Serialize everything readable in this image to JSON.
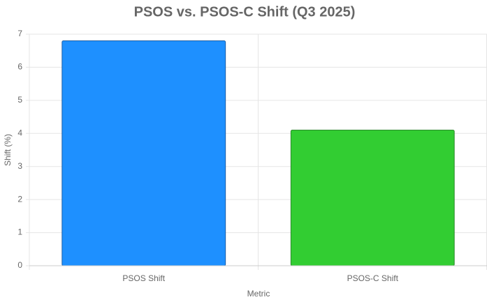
{
  "chart_data": {
    "type": "bar",
    "title": "PSOS vs. PSOS-C Shift (Q3 2025)",
    "x_label": "Metric",
    "y_label": "Shift (%)",
    "categories": [
      "PSOS Shift",
      "PSOS-C Shift"
    ],
    "values": [
      6.8,
      4.1
    ],
    "colors": [
      "#1e90ff",
      "#32cd32"
    ],
    "border_colors": [
      "#1a5fa8",
      "#2a8a2a"
    ],
    "ylim": [
      0,
      7
    ],
    "yticks": [
      0,
      1,
      2,
      3,
      4,
      5,
      6,
      7
    ],
    "grid": true
  }
}
